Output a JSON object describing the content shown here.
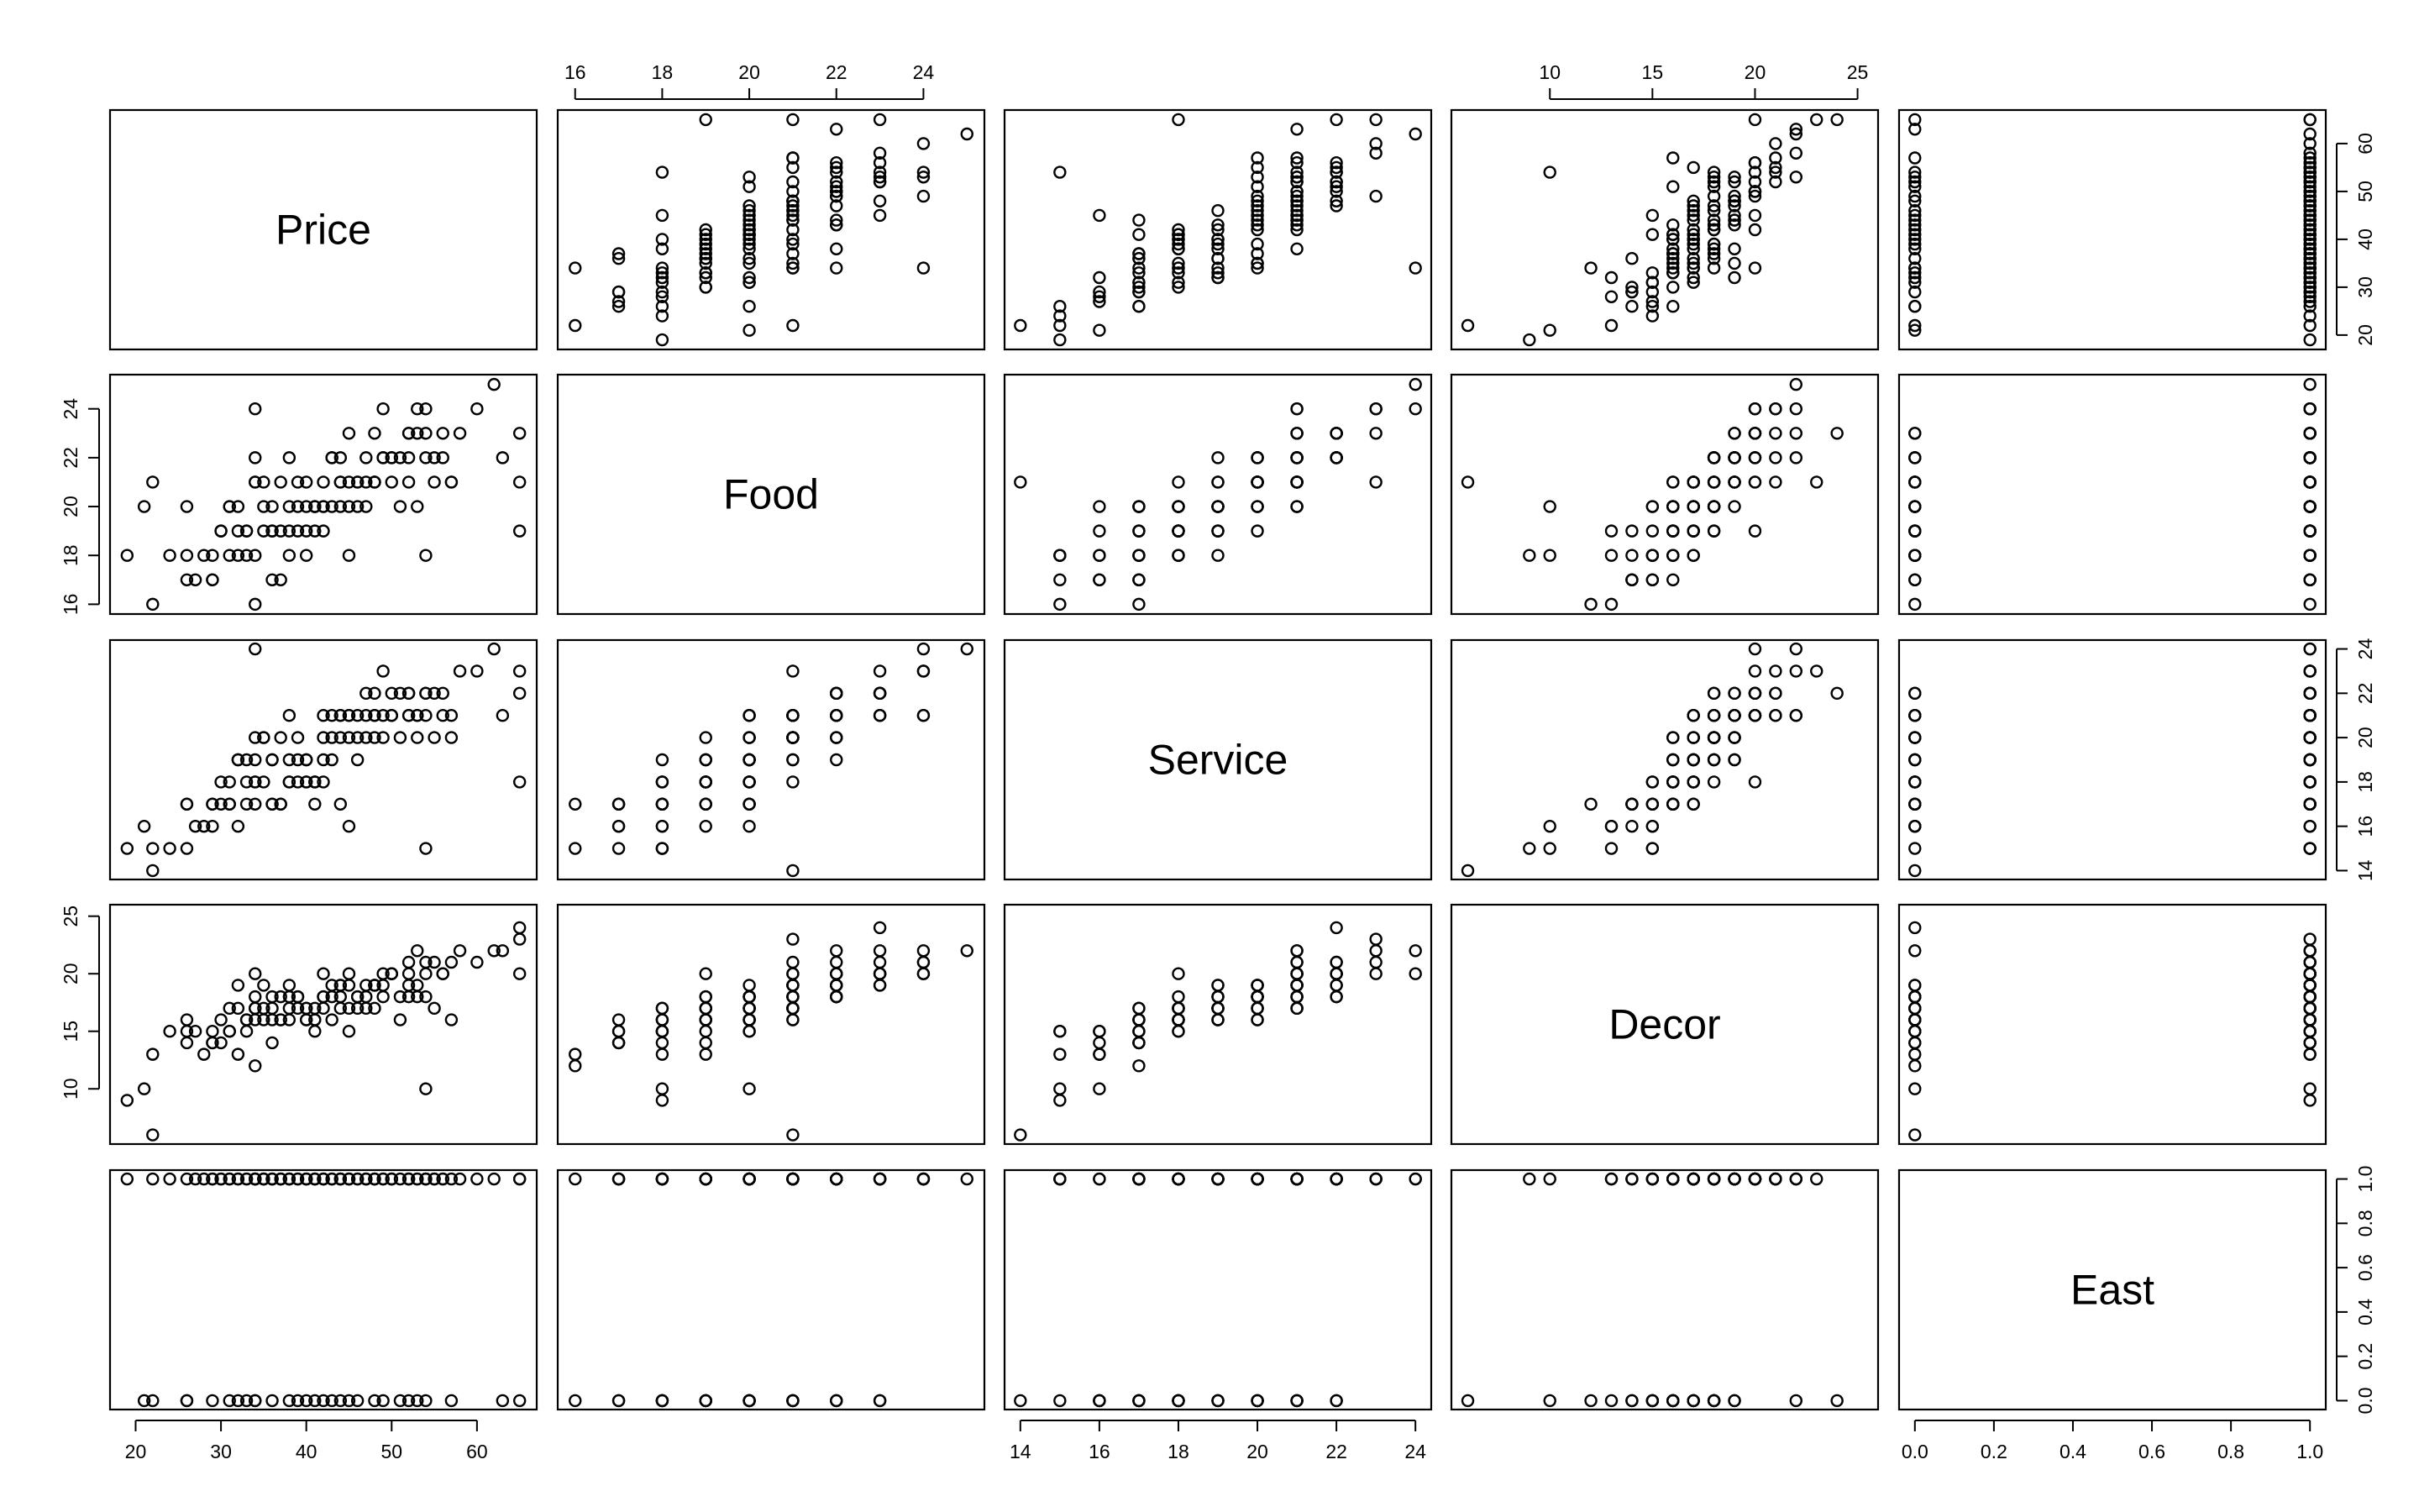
{
  "chart_data": {
    "type": "scatter",
    "kind": "scatterplot-matrix",
    "variables": [
      "Price",
      "Food",
      "Service",
      "Decor",
      "East"
    ],
    "axes": {
      "Price": {
        "lim": [
          17,
          67
        ],
        "ticks": [
          20,
          30,
          40,
          50,
          60
        ],
        "tick_labels": [
          "20",
          "30",
          "40",
          "50",
          "60"
        ]
      },
      "Food": {
        "lim": [
          15.6,
          25.4
        ],
        "ticks": [
          16,
          18,
          20,
          22,
          24
        ],
        "tick_labels": [
          "16",
          "18",
          "20",
          "22",
          "24"
        ]
      },
      "Service": {
        "lim": [
          13.6,
          24.4
        ],
        "ticks": [
          14,
          16,
          18,
          20,
          22,
          24
        ],
        "tick_labels": [
          "14",
          "16",
          "18",
          "20",
          "22",
          "24"
        ]
      },
      "Decor": {
        "lim": [
          5.2,
          26
        ],
        "ticks": [
          10,
          15,
          20,
          25
        ],
        "tick_labels": [
          "10",
          "15",
          "20",
          "25"
        ]
      },
      "East": {
        "lim": [
          -0.04,
          1.04
        ],
        "ticks": [
          0,
          0.2,
          0.4,
          0.6,
          0.8,
          1.0
        ],
        "tick_labels": [
          "0.0",
          "0.2",
          "0.4",
          "0.6",
          "0.8",
          "1.0"
        ]
      }
    },
    "axis_placement": {
      "Price": {
        "x_axis": "bottom",
        "y_axis": "right"
      },
      "Food": {
        "x_axis": "top",
        "y_axis": "left"
      },
      "Service": {
        "x_axis": "bottom",
        "y_axis": "right"
      },
      "Decor": {
        "x_axis": "top",
        "y_axis": "left"
      },
      "East": {
        "x_axis": "bottom",
        "y_axis": "right"
      }
    },
    "grid": false,
    "marker": "open-circle",
    "data": [
      [
        43,
        22,
        20,
        18,
        1
      ],
      [
        32,
        20,
        19,
        19,
        1
      ],
      [
        34,
        21,
        18,
        17,
        1
      ],
      [
        41,
        20,
        17,
        17,
        1
      ],
      [
        54,
        24,
        21,
        21,
        1
      ],
      [
        52,
        22,
        21,
        19,
        1
      ],
      [
        34,
        21,
        19,
        16,
        1
      ],
      [
        34,
        22,
        20,
        18,
        1
      ],
      [
        39,
        21,
        20,
        18,
        1
      ],
      [
        44,
        20,
        17,
        17,
        1
      ],
      [
        41,
        20,
        18,
        16,
        1
      ],
      [
        29,
        18,
        17,
        15,
        1
      ],
      [
        46,
        21,
        21,
        17,
        1
      ],
      [
        40,
        20,
        18,
        16,
        1
      ],
      [
        47,
        21,
        20,
        17,
        1
      ],
      [
        49,
        22,
        21,
        18,
        1
      ],
      [
        55,
        22,
        22,
        21,
        1
      ],
      [
        58,
        23,
        23,
        22,
        1
      ],
      [
        60,
        24,
        23,
        21,
        1
      ],
      [
        54,
        23,
        22,
        20,
        1
      ],
      [
        45,
        21,
        20,
        19,
        1
      ],
      [
        38,
        19,
        18,
        17,
        1
      ],
      [
        50,
        22,
        21,
        20,
        1
      ],
      [
        35,
        20,
        18,
        16,
        1
      ],
      [
        52,
        23,
        22,
        20,
        1
      ],
      [
        48,
        21,
        20,
        19,
        1
      ],
      [
        37,
        19,
        17,
        16,
        1
      ],
      [
        31,
        18,
        17,
        15,
        1
      ],
      [
        42,
        20,
        19,
        18,
        1
      ],
      [
        56,
        23,
        21,
        20,
        1
      ],
      [
        62,
        25,
        24,
        22,
        1
      ],
      [
        65,
        21,
        23,
        23,
        1
      ],
      [
        65,
        19,
        18,
        20,
        1
      ],
      [
        19,
        18,
        15,
        9,
        1
      ],
      [
        24,
        18,
        15,
        15,
        1
      ],
      [
        27,
        17,
        16,
        15,
        1
      ],
      [
        30,
        19,
        17,
        14,
        1
      ],
      [
        33,
        19,
        18,
        15,
        1
      ],
      [
        36,
        20,
        19,
        17,
        1
      ],
      [
        36,
        17,
        17,
        14,
        1
      ],
      [
        37,
        17,
        17,
        16,
        1
      ],
      [
        38,
        22,
        19,
        19,
        1
      ],
      [
        40,
        21,
        19,
        17,
        1
      ],
      [
        42,
        20,
        20,
        18,
        1
      ],
      [
        43,
        22,
        21,
        19,
        1
      ],
      [
        45,
        23,
        21,
        20,
        1
      ],
      [
        46,
        21,
        20,
        18,
        1
      ],
      [
        48,
        23,
        22,
        19,
        1
      ],
      [
        50,
        21,
        21,
        20,
        1
      ],
      [
        51,
        22,
        22,
        18,
        1
      ],
      [
        53,
        24,
        21,
        22,
        1
      ],
      [
        54,
        18,
        15,
        10,
        1
      ],
      [
        34,
        24,
        24,
        20,
        1
      ],
      [
        57,
        21,
        21,
        21,
        1
      ],
      [
        29,
        17,
        17,
        14,
        1
      ],
      [
        28,
        18,
        16,
        13,
        1
      ],
      [
        38,
        20,
        21,
        18,
        1
      ],
      [
        47,
        22,
        22,
        19,
        1
      ],
      [
        44,
        21,
        21,
        19,
        1
      ],
      [
        39,
        20,
        19,
        17,
        1
      ],
      [
        22,
        16,
        15,
        13,
        1
      ],
      [
        26,
        20,
        17,
        16,
        1
      ],
      [
        33,
        19,
        19,
        16,
        1
      ],
      [
        31,
        20,
        18,
        17,
        1
      ],
      [
        49,
        24,
        23,
        20,
        1
      ],
      [
        36,
        19,
        19,
        18,
        1
      ],
      [
        45,
        20,
        21,
        17,
        1
      ],
      [
        52,
        23,
        22,
        21,
        1
      ],
      [
        55,
        21,
        20,
        17,
        1
      ],
      [
        40,
        18,
        18,
        16,
        1
      ],
      [
        42,
        21,
        21,
        20,
        1
      ],
      [
        30,
        19,
        18,
        16,
        1
      ],
      [
        35,
        21,
        20,
        19,
        1
      ],
      [
        44,
        22,
        21,
        19,
        1
      ],
      [
        47,
        20,
        21,
        18,
        1
      ],
      [
        50,
        22,
        22,
        20,
        1
      ],
      [
        53,
        20,
        20,
        18,
        1
      ],
      [
        35,
        19,
        20,
        17,
        1
      ],
      [
        56,
        22,
        22,
        20,
        1
      ],
      [
        32,
        18,
        19,
        17,
        1
      ],
      [
        37,
        21,
        20,
        18,
        1
      ],
      [
        41,
        19,
        18,
        16,
        1
      ],
      [
        48,
        21,
        21,
        19,
        1
      ],
      [
        26,
        18,
        17,
        14,
        0
      ],
      [
        21,
        20,
        16,
        10,
        0
      ],
      [
        22,
        21,
        14,
        6,
        0
      ],
      [
        26,
        17,
        15,
        15,
        0
      ],
      [
        29,
        17,
        16,
        14,
        0
      ],
      [
        31,
        20,
        17,
        15,
        0
      ],
      [
        32,
        19,
        16,
        13,
        0
      ],
      [
        33,
        18,
        17,
        16,
        0
      ],
      [
        34,
        18,
        18,
        17,
        0
      ],
      [
        36,
        19,
        17,
        16,
        0
      ],
      [
        38,
        18,
        18,
        16,
        0
      ],
      [
        39,
        19,
        18,
        18,
        0
      ],
      [
        40,
        19,
        19,
        17,
        0
      ],
      [
        41,
        20,
        18,
        15,
        0
      ],
      [
        42,
        19,
        18,
        17,
        0
      ],
      [
        44,
        21,
        20,
        18,
        0
      ],
      [
        45,
        18,
        16,
        15,
        0
      ],
      [
        46,
        20,
        19,
        18,
        0
      ],
      [
        48,
        21,
        21,
        17,
        0
      ],
      [
        49,
        22,
        20,
        19,
        0
      ],
      [
        51,
        20,
        20,
        16,
        0
      ],
      [
        52,
        21,
        21,
        18,
        0
      ],
      [
        53,
        23,
        21,
        19,
        0
      ],
      [
        54,
        22,
        22,
        18,
        0
      ],
      [
        57,
        21,
        20,
        16,
        0
      ],
      [
        63,
        22,
        21,
        22,
        0
      ],
      [
        65,
        23,
        22,
        24,
        0
      ],
      [
        34,
        16,
        17,
        12,
        0
      ],
      [
        43,
        20,
        19,
        16,
        0
      ]
    ]
  }
}
